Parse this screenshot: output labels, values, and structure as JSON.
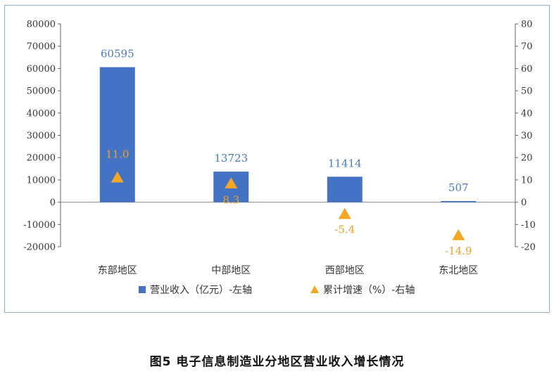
{
  "caption": "图5 电子信息制造业分地区营业收入增长情况",
  "chart_data": {
    "type": "bar",
    "categories": [
      "东部地区",
      "中部地区",
      "西部地区",
      "东北地区"
    ],
    "series": [
      {
        "name": "营业收入（亿元）-左轴",
        "type": "bar",
        "axis": "left",
        "color": "#4472c4",
        "values": [
          60595,
          13723,
          11414,
          507
        ],
        "labels": [
          "60595",
          "13723",
          "11414",
          "507"
        ]
      },
      {
        "name": "累计增速（%）-右轴",
        "type": "scatter",
        "marker": "triangle",
        "axis": "right",
        "color": "#f5a623",
        "values": [
          11.0,
          8.3,
          -5.4,
          -14.9
        ],
        "labels": [
          "11.0",
          "8.3",
          "-5.4",
          "-14.9"
        ]
      }
    ],
    "y_left": {
      "ylim": [
        -20000,
        80000
      ],
      "ticks": [
        "80000",
        "70000",
        "60000",
        "50000",
        "40000",
        "30000",
        "20000",
        "10000",
        "0",
        "-10000",
        "-20000"
      ],
      "tick_values": [
        80000,
        70000,
        60000,
        50000,
        40000,
        30000,
        20000,
        10000,
        0,
        -10000,
        -20000
      ]
    },
    "y_right": {
      "ylim": [
        -20,
        80
      ],
      "ticks": [
        "80",
        "70",
        "60",
        "50",
        "40",
        "30",
        "20",
        "10",
        "0",
        "-10",
        "-20"
      ],
      "tick_values": [
        80,
        70,
        60,
        50,
        40,
        30,
        20,
        10,
        0,
        -10,
        -20
      ]
    },
    "grid": false,
    "legend_position": "bottom"
  }
}
